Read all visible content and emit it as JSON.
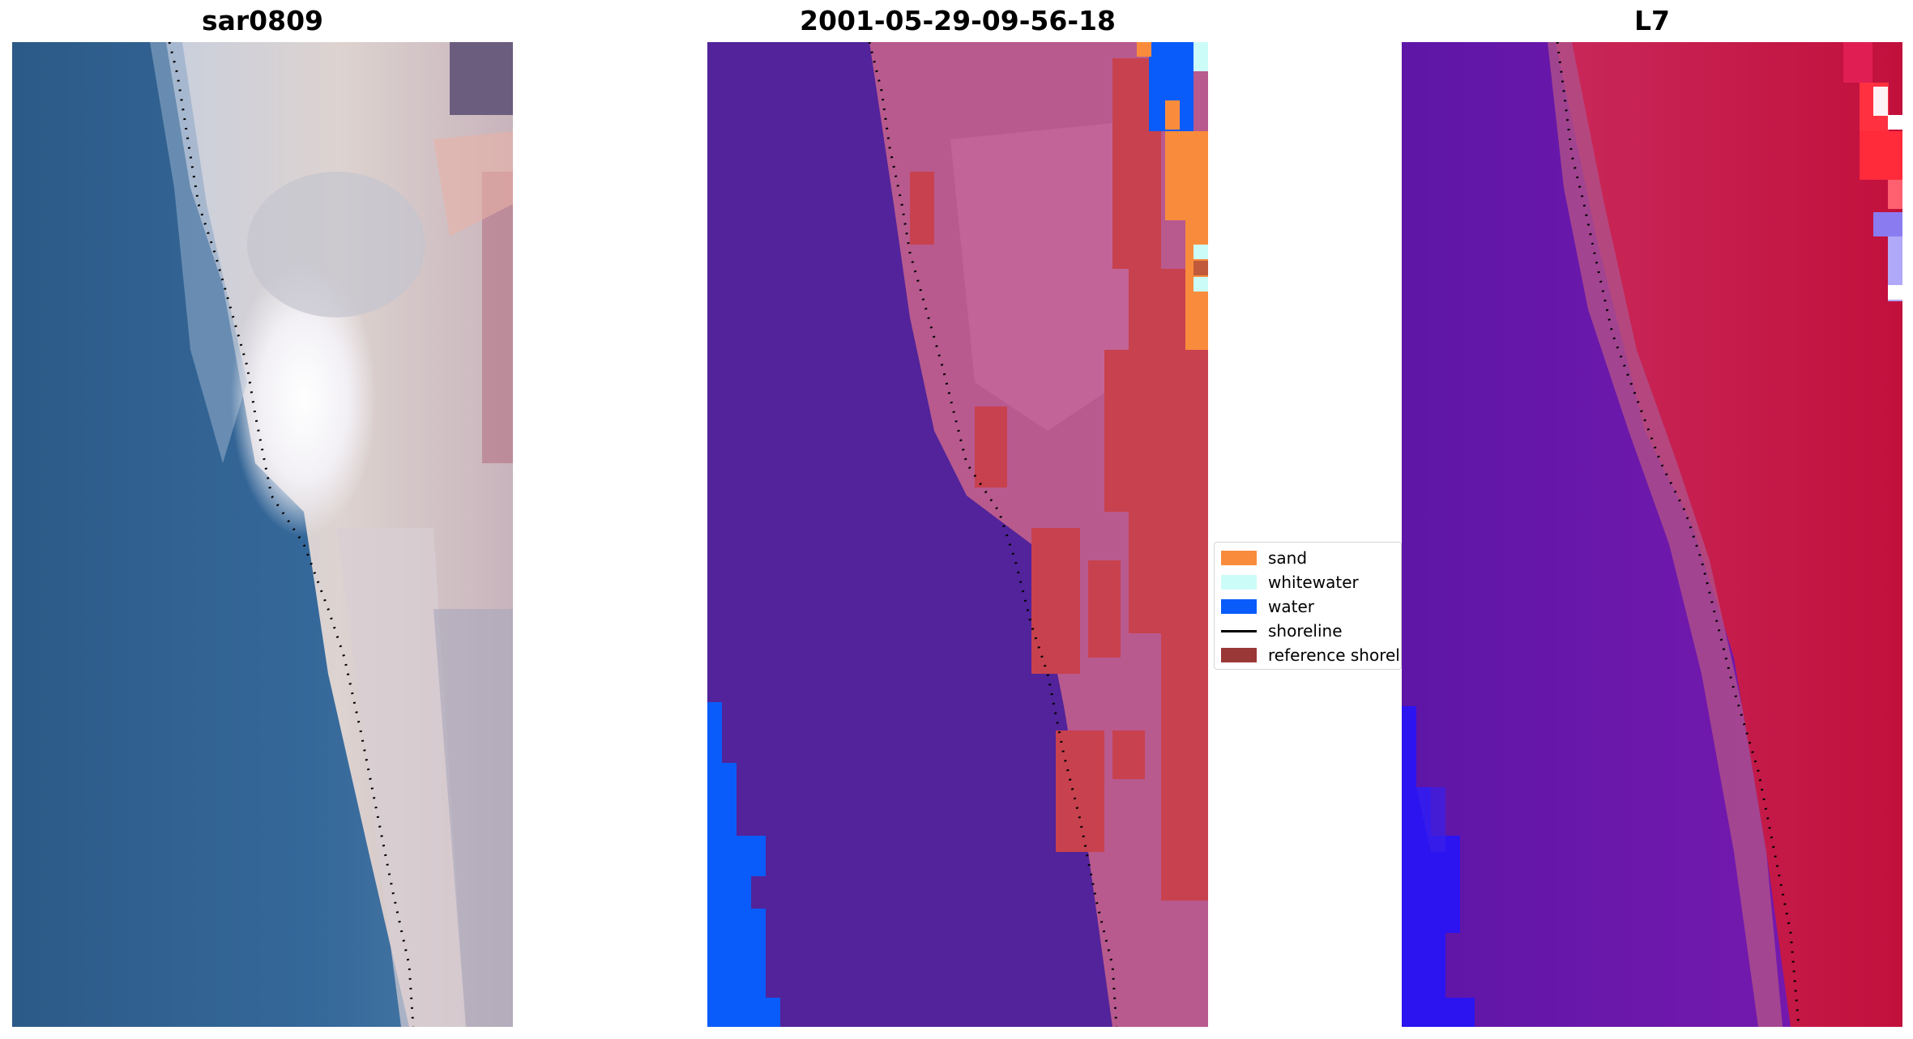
{
  "panels": [
    {
      "title": "sar0809",
      "kind": "rgb"
    },
    {
      "title": "2001-05-29-09-56-18",
      "kind": "classified"
    },
    {
      "title": "L7",
      "kind": "index"
    }
  ],
  "legend": {
    "items": [
      {
        "label": "sand",
        "color": "#f98c3c",
        "type": "patch"
      },
      {
        "label": "whitewater",
        "color": "#ccfcf7",
        "type": "patch"
      },
      {
        "label": "water",
        "color": "#0a5cfa",
        "type": "patch"
      },
      {
        "label": "shoreline",
        "color": "#000000",
        "type": "line"
      },
      {
        "label": "reference shoreline buffer",
        "color": "#9a3838",
        "type": "patch"
      }
    ]
  },
  "colors": {
    "deep_water_rgb": "#2d5a86",
    "sand_rgb": "#d9c7c2",
    "classified_water_background": "#52239a",
    "classified_land": "#b85a8e",
    "buffer_red": "#c83a4f",
    "index_water": "#6a14a8",
    "index_land": "#c2103c"
  }
}
